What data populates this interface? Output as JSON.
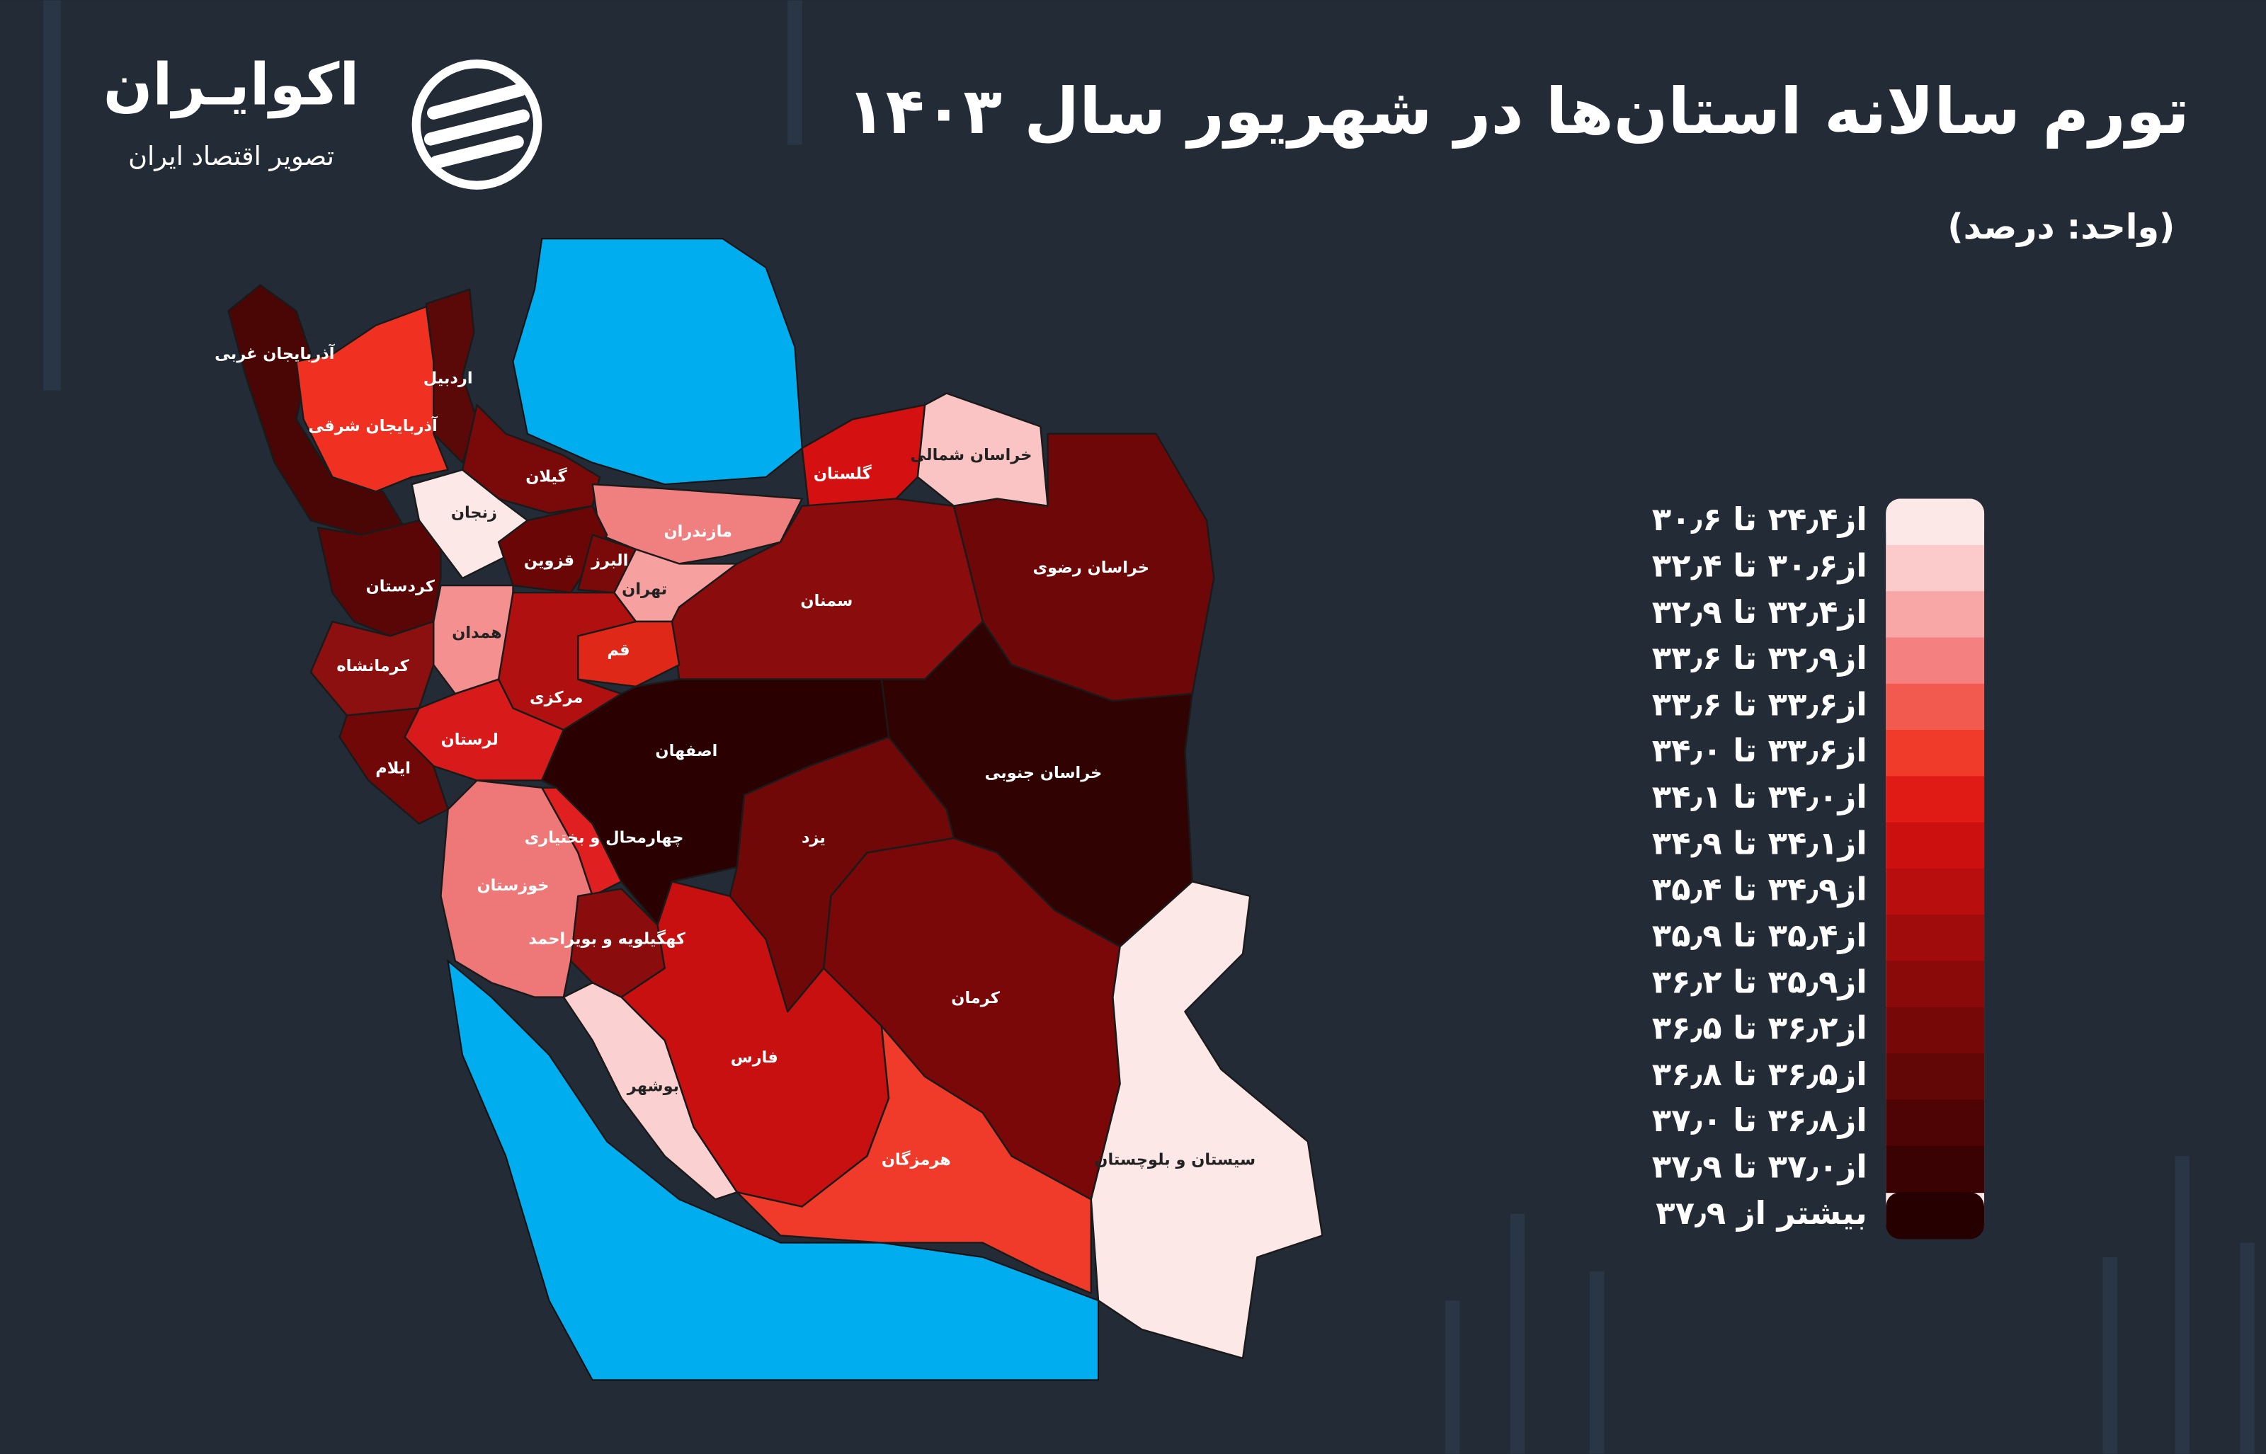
{
  "title": "تورم سالانه استان‌ها در شهریور سال ۱۴۰۳",
  "subtitle": "(واحد: درصد)",
  "logo": {
    "name": "اکوایـران",
    "tagline": "تصویر اقتصاد ایران"
  },
  "legend": {
    "items": [
      {
        "label": "از۲۴٫۴ تا ۳۰٫۶",
        "color": "#fde8e8"
      },
      {
        "label": "از۳۰٫۶ تا ۳۲٫۴",
        "color": "#fbcaca"
      },
      {
        "label": "از۳۲٫۴ تا ۳۲٫۹",
        "color": "#f8a6a6"
      },
      {
        "label": "از۳۲٫۹ تا ۳۳٫۶",
        "color": "#f48080"
      },
      {
        "label": "از۳۳٫۶ تا ۳۳٫۶",
        "color": "#f25a50"
      },
      {
        "label": "از۳۳٫۶ تا ۳۴٫۰",
        "color": "#f03a2a"
      },
      {
        "label": "از۳۴٫۰ تا ۳۴٫۱",
        "color": "#e01a14"
      },
      {
        "label": "از۳۴٫۱ تا ۳۴٫۹",
        "color": "#cc1010"
      },
      {
        "label": "از۳۴٫۹ تا ۳۵٫۴",
        "color": "#b80e0e"
      },
      {
        "label": "از۳۵٫۴ تا ۳۵٫۹",
        "color": "#a00c0c"
      },
      {
        "label": "از۳۵٫۹ تا ۳۶٫۲",
        "color": "#8a0a0a"
      },
      {
        "label": "از۳۶٫۲ تا ۳۶٫۵",
        "color": "#760808"
      },
      {
        "label": "از۳۶٫۵ تا ۳۶٫۸",
        "color": "#620606"
      },
      {
        "label": "از۳۶٫۸ تا ۳۷٫۰",
        "color": "#4e0404"
      },
      {
        "label": "از۳۷٫۰ تا ۳۷٫۹",
        "color": "#3a0202"
      },
      {
        "label": "بیشتر از ۳۷٫۹",
        "color": "#260000"
      }
    ]
  },
  "provinces": [
    {
      "name": "آذربایجان غربی",
      "color": "#4a0505"
    },
    {
      "name": "اردبیل",
      "color": "#5a0808"
    },
    {
      "name": "آذربایجان شرقی",
      "color": "#f03020"
    },
    {
      "name": "گیلان",
      "color": "#7a0a0a"
    },
    {
      "name": "زنجان",
      "color": "#fde8e8"
    },
    {
      "name": "مازندران",
      "color": "#f08080"
    },
    {
      "name": "گلستان",
      "color": "#d41010"
    },
    {
      "name": "خراسان شمالی",
      "color": "#fbc4c4"
    },
    {
      "name": "خراسان رضوی",
      "color": "#6e0808"
    },
    {
      "name": "قزوین",
      "color": "#6a0606"
    },
    {
      "name": "البرز",
      "color": "#7a0a0a"
    },
    {
      "name": "تهران",
      "color": "#f6a0a0"
    },
    {
      "name": "سمنان",
      "color": "#8a0c0c"
    },
    {
      "name": "کردستان",
      "color": "#5a0606"
    },
    {
      "name": "همدان",
      "color": "#f49090"
    },
    {
      "name": "قم",
      "color": "#e02818"
    },
    {
      "name": "کرمانشاه",
      "color": "#8c1010"
    },
    {
      "name": "مرکزی",
      "color": "#b01010"
    },
    {
      "name": "لرستان",
      "color": "#d81a1a"
    },
    {
      "name": "ایلام",
      "color": "#700808"
    },
    {
      "name": "اصفهان",
      "color": "#2a0000"
    },
    {
      "name": "خراسان جنوبی",
      "color": "#300202"
    },
    {
      "name": "چهارمحال و بختیاری",
      "color": "#e02020"
    },
    {
      "name": "یزد",
      "color": "#700808"
    },
    {
      "name": "خوزستان",
      "color": "#ee7878"
    },
    {
      "name": "کهگیلویه و بویراحمد",
      "color": "#8a0c0c"
    },
    {
      "name": "کرمان",
      "color": "#7a0808"
    },
    {
      "name": "فارس",
      "color": "#c81010"
    },
    {
      "name": "بوشهر",
      "color": "#fbd0d0"
    },
    {
      "name": "هرمزگان",
      "color": "#f03a2a"
    },
    {
      "name": "سیستان و بلوچستان",
      "color": "#fde8e8"
    }
  ]
}
